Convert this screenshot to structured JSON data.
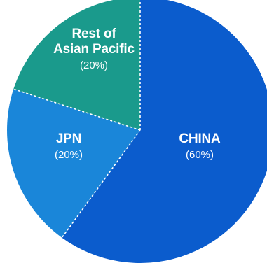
{
  "chart_data": {
    "type": "pie",
    "title": "",
    "slices": [
      {
        "label": "CHINA",
        "label_lines": [
          "CHINA"
        ],
        "pct_text": "(60%)",
        "value": 60,
        "color": "#0b5ccd"
      },
      {
        "label": "JPN",
        "label_lines": [
          "JPN"
        ],
        "pct_text": "(20%)",
        "value": 20,
        "color": "#1a86d9"
      },
      {
        "label": "Rest of Asian Pacific",
        "label_lines": [
          "Rest of",
          "Asian Pacific"
        ],
        "pct_text": "(20%)",
        "value": 20,
        "color": "#1a9a8c"
      }
    ],
    "start_angle_deg": 0,
    "direction": "clockwise",
    "separator_style": "dashed white",
    "legend": "none"
  }
}
